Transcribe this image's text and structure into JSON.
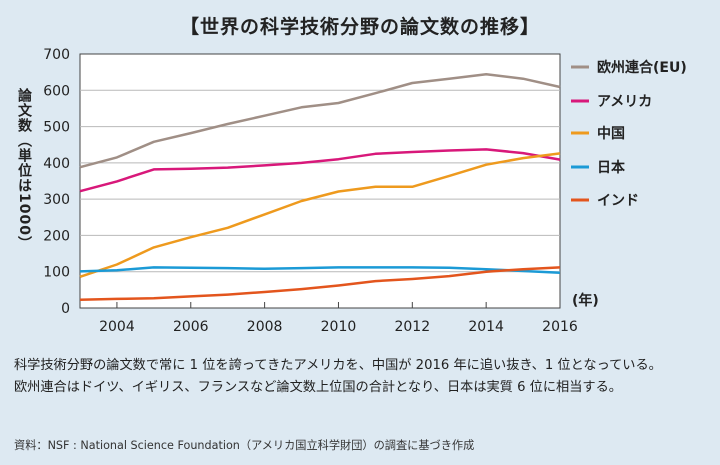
{
  "title": "【世界の科学技術分野の論文数の推移】",
  "caption_line1": "科学技術分野の論文数で常に 1 位を誇ってきたアメリカを、中国が 2016 年に追い抜き、1 位となっている。",
  "caption_line2": "欧州連合はドイツ、イギリス、フランスなど論文数上位国の合計となり、日本は実質 6 位に相当する。",
  "source": "資料：NSF : National Science Foundation（アメリカ国立科学財団）の調査に基づき作成",
  "chart_data": {
    "type": "line",
    "title": "【世界の科学技術分野の論文数の推移】",
    "ylabel": "論文数（単位は1000）",
    "xlabel": "(年)",
    "xlim": [
      2003,
      2016
    ],
    "ylim": [
      0,
      700
    ],
    "yticks": [
      0,
      100,
      200,
      300,
      400,
      500,
      600,
      700
    ],
    "xticks": [
      2004,
      2006,
      2008,
      2010,
      2012,
      2014,
      2016
    ],
    "grid": "horizontal",
    "legend": "right",
    "x": [
      2003,
      2004,
      2005,
      2006,
      2007,
      2008,
      2009,
      2010,
      2011,
      2012,
      2013,
      2014,
      2015,
      2016
    ],
    "series": [
      {
        "name": "欧州連合(EU)",
        "color": "#a08f86",
        "values": [
          388,
          415,
          458,
          482,
          507,
          530,
          553,
          565,
          592,
          620,
          632,
          644,
          632,
          609
        ]
      },
      {
        "name": "アメリカ",
        "color": "#d8187a",
        "values": [
          322,
          349,
          382,
          384,
          387,
          393,
          400,
          410,
          425,
          430,
          434,
          437,
          427,
          409
        ]
      },
      {
        "name": "中国",
        "color": "#ee9a1e",
        "values": [
          86,
          120,
          167,
          195,
          221,
          258,
          295,
          321,
          334,
          334,
          364,
          395,
          413,
          426
        ]
      },
      {
        "name": "日本",
        "color": "#1b9ad6",
        "values": [
          101,
          104,
          112,
          111,
          110,
          108,
          110,
          112,
          112,
          112,
          111,
          107,
          102,
          97
        ]
      },
      {
        "name": "インド",
        "color": "#e3551d",
        "values": [
          23,
          25,
          27,
          32,
          37,
          44,
          52,
          62,
          74,
          80,
          88,
          100,
          107,
          112
        ]
      }
    ]
  }
}
